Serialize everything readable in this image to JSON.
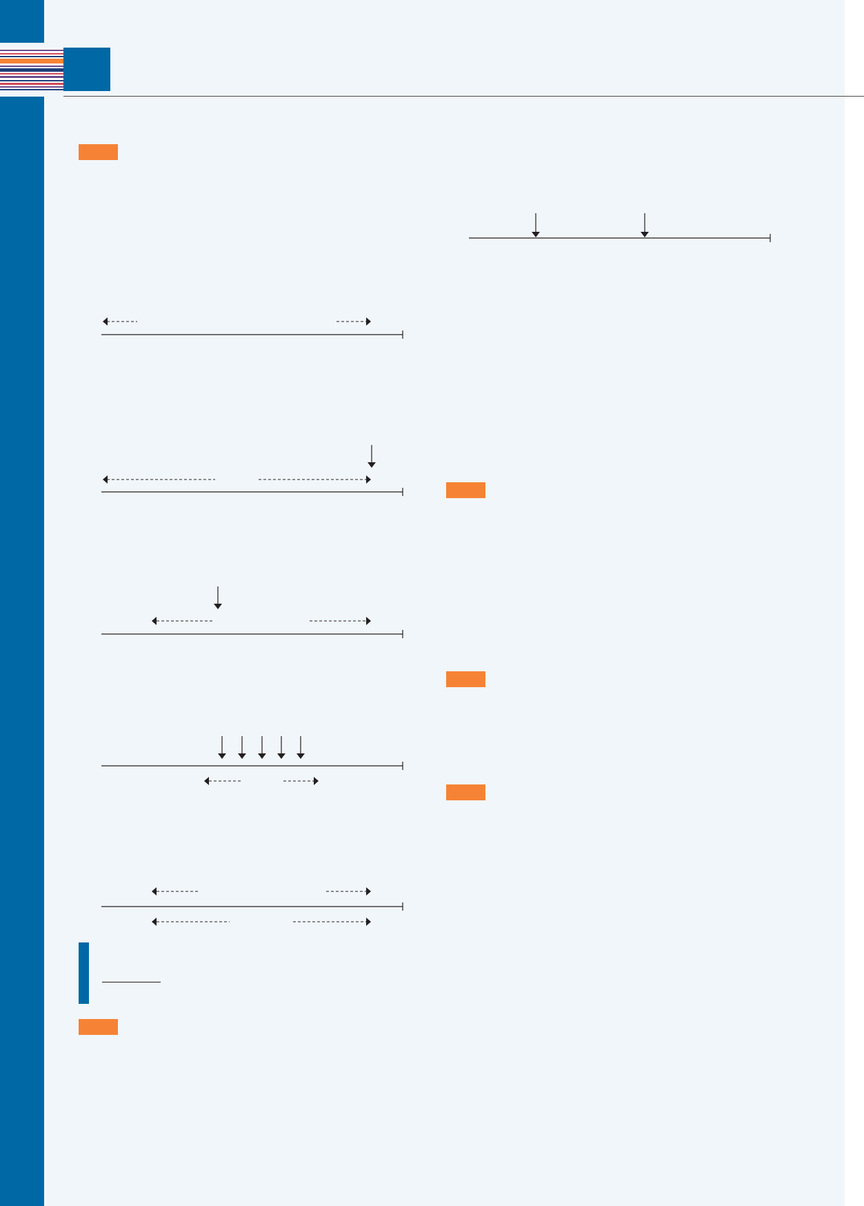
{
  "colors": {
    "page_background": "#f1f6fa",
    "brand_blue": "#0068a5",
    "tag_orange": "#f68335",
    "stripe_palette": [
      "#6b4a8c",
      "#d24b5a",
      "#f68335",
      "#1e3f7a",
      "#ffffff"
    ],
    "line_color": "#231f20"
  },
  "icons": {
    "down_arrow": "down-arrow-icon",
    "left_dashed_arrow": "left-dashed-arrow-icon",
    "right_dashed_arrow": "right-dashed-arrow-icon"
  },
  "section_tags": [
    "",
    "",
    "",
    "",
    ""
  ]
}
